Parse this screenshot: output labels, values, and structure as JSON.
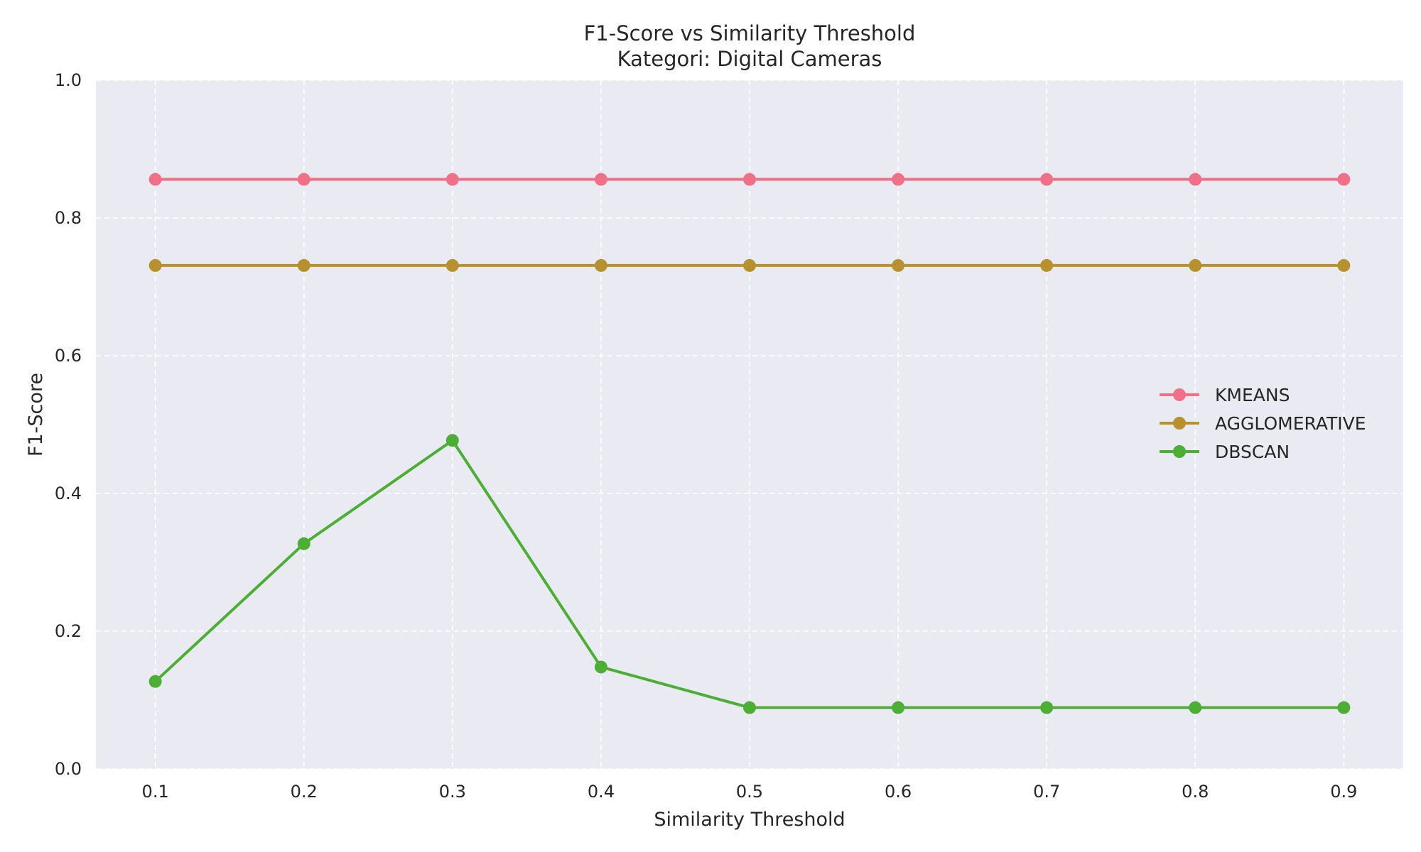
{
  "chart_data": {
    "type": "line",
    "title": "F1-Score vs Similarity Threshold",
    "subtitle": "Kategori: Digital Cameras",
    "xlabel": "Similarity Threshold",
    "ylabel": "F1-Score",
    "x": [
      0.1,
      0.2,
      0.3,
      0.4,
      0.5,
      0.6,
      0.7,
      0.8,
      0.9
    ],
    "xticks": [
      "0.1",
      "0.2",
      "0.3",
      "0.4",
      "0.5",
      "0.6",
      "0.7",
      "0.8",
      "0.9"
    ],
    "yticks": [
      "0.0",
      "0.2",
      "0.4",
      "0.6",
      "0.8",
      "1.0"
    ],
    "xlim": [
      0.06,
      0.94
    ],
    "ylim": [
      0.0,
      1.0
    ],
    "grid": true,
    "legend_position": "right",
    "series": [
      {
        "name": "KMEANS",
        "color": "#f0708a",
        "values": [
          0.856,
          0.856,
          0.856,
          0.856,
          0.856,
          0.856,
          0.856,
          0.856,
          0.856
        ]
      },
      {
        "name": "AGGLOMERATIVE",
        "color": "#b8912f",
        "values": [
          0.731,
          0.731,
          0.731,
          0.731,
          0.731,
          0.731,
          0.731,
          0.731,
          0.731
        ]
      },
      {
        "name": "DBSCAN",
        "color": "#4dae36",
        "values": [
          0.127,
          0.327,
          0.477,
          0.148,
          0.089,
          0.089,
          0.089,
          0.089,
          0.089
        ]
      }
    ]
  }
}
